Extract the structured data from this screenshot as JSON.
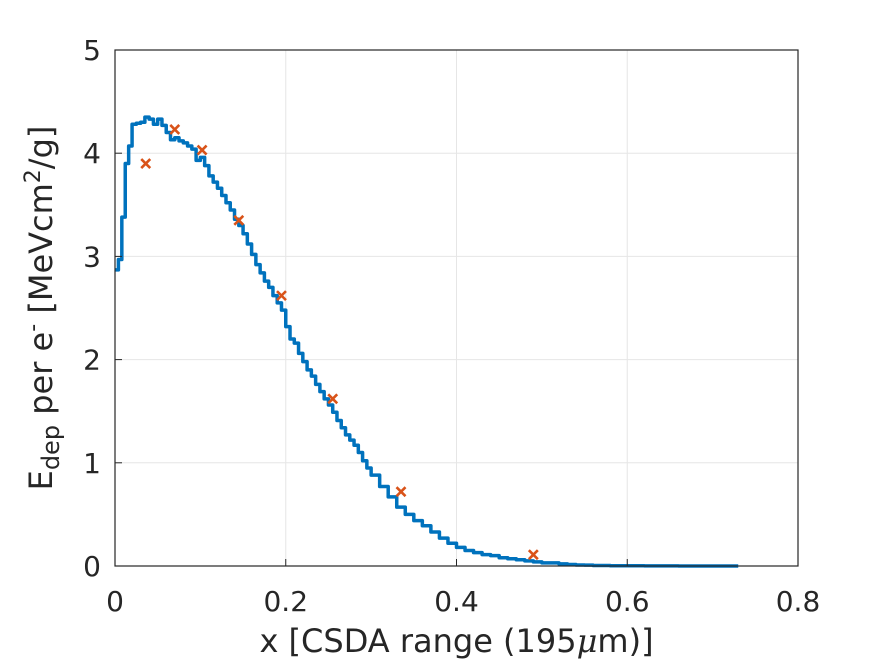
{
  "chart_data": {
    "type": "line",
    "title": "",
    "xlabel_text": "x [CSDA range (195",
    "xlabel_mu": "μ",
    "xlabel_tail": "m)]",
    "ylabel_E": "E",
    "ylabel_sub": "dep",
    "ylabel_mid": " per e",
    "ylabel_sup_minus": "-",
    "ylabel_units": " [MeVcm",
    "ylabel_sup2": "2",
    "ylabel_end": "/g]",
    "xlim": [
      0,
      0.8
    ],
    "ylim": [
      0,
      5
    ],
    "xticks": [
      0,
      0.2,
      0.4,
      0.6,
      0.8
    ],
    "xtick_labels": [
      "0",
      "0.2",
      "0.4",
      "0.6",
      "0.8"
    ],
    "yticks": [
      0,
      1,
      2,
      3,
      4,
      5
    ],
    "ytick_labels": [
      "0",
      "1",
      "2",
      "3",
      "4",
      "5"
    ],
    "grid": true,
    "series": [
      {
        "style": "step-line",
        "color": "#0072BD",
        "x": [
          0.0,
          0.004,
          0.008,
          0.012,
          0.016,
          0.02,
          0.025,
          0.03,
          0.035,
          0.04,
          0.045,
          0.05,
          0.055,
          0.06,
          0.065,
          0.07,
          0.075,
          0.08,
          0.085,
          0.09,
          0.095,
          0.1,
          0.105,
          0.11,
          0.115,
          0.12,
          0.125,
          0.13,
          0.135,
          0.14,
          0.145,
          0.15,
          0.155,
          0.16,
          0.165,
          0.17,
          0.175,
          0.18,
          0.185,
          0.19,
          0.195,
          0.2,
          0.205,
          0.21,
          0.215,
          0.22,
          0.225,
          0.23,
          0.235,
          0.24,
          0.245,
          0.25,
          0.255,
          0.26,
          0.265,
          0.27,
          0.275,
          0.28,
          0.285,
          0.29,
          0.295,
          0.3,
          0.31,
          0.32,
          0.33,
          0.34,
          0.35,
          0.36,
          0.37,
          0.38,
          0.39,
          0.4,
          0.41,
          0.42,
          0.43,
          0.44,
          0.45,
          0.46,
          0.47,
          0.48,
          0.49,
          0.5,
          0.51,
          0.52,
          0.53,
          0.54,
          0.55,
          0.56,
          0.58,
          0.6,
          0.62,
          0.64,
          0.66,
          0.68,
          0.7,
          0.72,
          0.73
        ],
        "y": [
          2.87,
          2.97,
          3.38,
          3.9,
          4.07,
          4.28,
          4.29,
          4.3,
          4.35,
          4.33,
          4.28,
          4.33,
          4.27,
          4.2,
          4.13,
          4.15,
          4.12,
          4.1,
          4.07,
          4.04,
          3.93,
          3.96,
          3.88,
          3.78,
          3.72,
          3.66,
          3.59,
          3.52,
          3.45,
          3.36,
          3.3,
          3.22,
          3.12,
          3.02,
          2.92,
          2.84,
          2.76,
          2.7,
          2.62,
          2.55,
          2.48,
          2.32,
          2.2,
          2.16,
          2.06,
          1.98,
          1.9,
          1.84,
          1.76,
          1.69,
          1.62,
          1.56,
          1.49,
          1.41,
          1.34,
          1.27,
          1.22,
          1.17,
          1.1,
          1.02,
          0.95,
          0.88,
          0.77,
          0.67,
          0.57,
          0.5,
          0.44,
          0.39,
          0.33,
          0.27,
          0.22,
          0.18,
          0.15,
          0.13,
          0.11,
          0.1,
          0.08,
          0.07,
          0.06,
          0.05,
          0.04,
          0.03,
          0.03,
          0.02,
          0.015,
          0.01,
          0.008,
          0.005,
          0.003,
          0.002,
          0.001,
          0.001,
          0.0,
          0.0,
          0.0,
          0.0,
          0.0
        ]
      },
      {
        "style": "markers-x",
        "color": "#D95319",
        "x": [
          0.036,
          0.07,
          0.102,
          0.145,
          0.195,
          0.255,
          0.335,
          0.49
        ],
        "y": [
          3.9,
          4.23,
          4.03,
          3.35,
          2.62,
          1.62,
          0.72,
          0.11
        ]
      }
    ]
  }
}
